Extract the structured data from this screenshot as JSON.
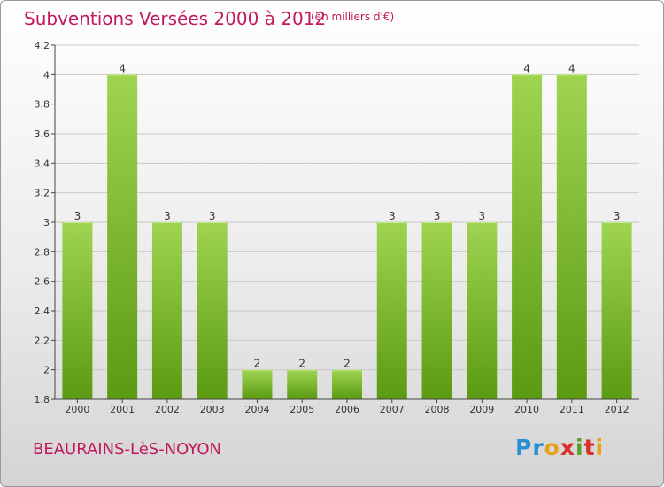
{
  "header": {
    "title": "Subventions Versées 2000 à 2012",
    "unit": "(en milliers d'€)"
  },
  "footer": {
    "commune": "BEAURAINS-LèS-NOYON",
    "logo_text": "Proxiti",
    "logo_colors": [
      "#2a8fd0",
      "#2a8fd0",
      "#e8a21a",
      "#d6312a",
      "#5aa02c",
      "#d6312a",
      "#e8a21a"
    ]
  },
  "chart_data": {
    "type": "bar",
    "categories": [
      "2000",
      "2001",
      "2002",
      "2003",
      "2004",
      "2005",
      "2006",
      "2007",
      "2008",
      "2009",
      "2010",
      "2011",
      "2012"
    ],
    "values": [
      3,
      4,
      3,
      3,
      2,
      2,
      2,
      3,
      3,
      3,
      4,
      4,
      3
    ],
    "value_labels": [
      "3",
      "4",
      "3",
      "3",
      "2",
      "2",
      "2",
      "3",
      "3",
      "3",
      "4",
      "4",
      "3"
    ],
    "yticks": [
      "1.8",
      "2",
      "2.2",
      "2.4",
      "2.6",
      "2.8",
      "3",
      "3.2",
      "3.4",
      "3.6",
      "3.8",
      "4",
      "4.2"
    ],
    "ylim": [
      1.8,
      4.2
    ],
    "grid": true,
    "colors": {
      "bar_top": "#9fd451",
      "bar_bottom": "#5b9a12",
      "grid": "#c9c9c9",
      "axis": "#444444"
    }
  }
}
